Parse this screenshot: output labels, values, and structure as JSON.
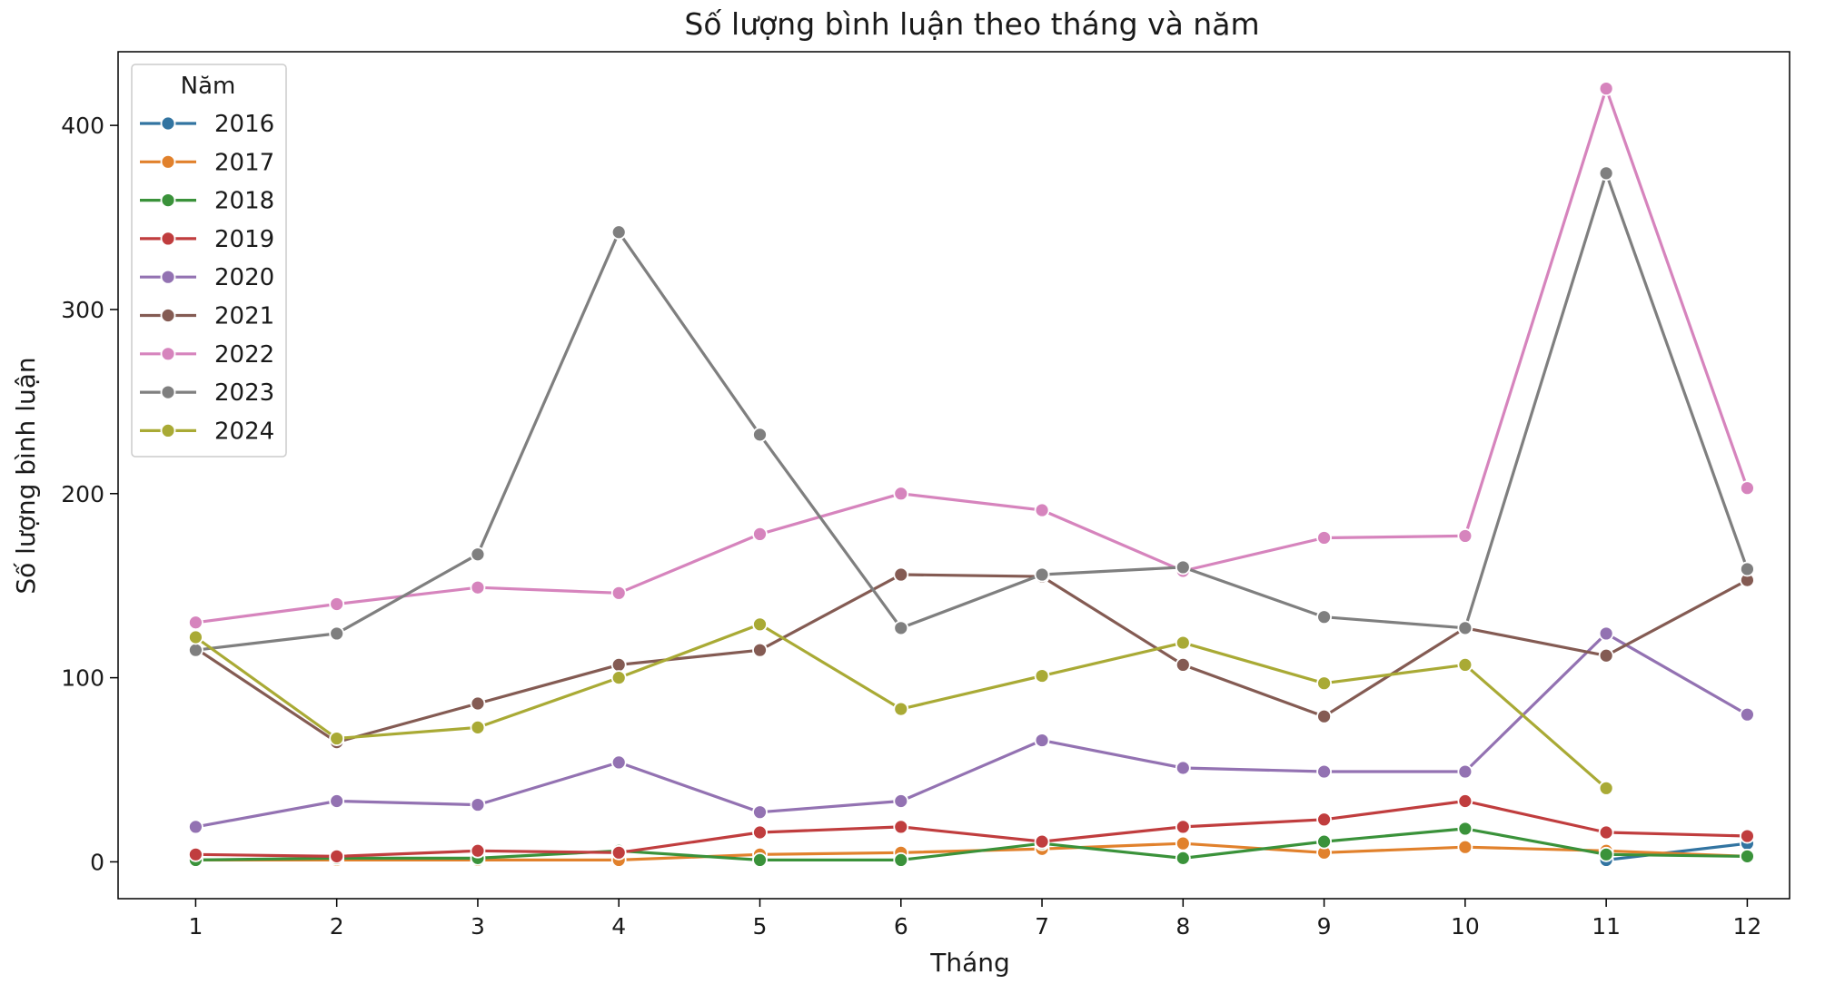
{
  "chart_data": {
    "type": "line",
    "title": "Số lượng bình luận theo tháng và năm",
    "xlabel": "Tháng",
    "ylabel": "Số lượng bình luận",
    "x": [
      1,
      2,
      3,
      4,
      5,
      6,
      7,
      8,
      9,
      10,
      11,
      12
    ],
    "xlim": [
      0.45,
      12.3
    ],
    "ylim": [
      -20,
      440
    ],
    "yticks": [
      0,
      100,
      200,
      300,
      400
    ],
    "grid": false,
    "marker": "circle",
    "legend": {
      "title": "Năm",
      "placement": "top-left"
    },
    "series": [
      {
        "name": "2016",
        "color": "#3274a1",
        "points": [
          [
            11,
            1
          ],
          [
            12,
            10
          ]
        ]
      },
      {
        "name": "2017",
        "color": "#e1812c",
        "points": [
          [
            1,
            1
          ],
          [
            2,
            1
          ],
          [
            3,
            1
          ],
          [
            4,
            1
          ],
          [
            5,
            4
          ],
          [
            6,
            5
          ],
          [
            7,
            7
          ],
          [
            8,
            10
          ],
          [
            9,
            5
          ],
          [
            10,
            8
          ],
          [
            11,
            6
          ],
          [
            12,
            3
          ]
        ]
      },
      {
        "name": "2018",
        "color": "#3a923a",
        "points": [
          [
            1,
            1
          ],
          [
            2,
            2
          ],
          [
            3,
            2
          ],
          [
            4,
            6
          ],
          [
            5,
            1
          ],
          [
            6,
            1
          ],
          [
            7,
            10
          ],
          [
            8,
            2
          ],
          [
            9,
            11
          ],
          [
            10,
            18
          ],
          [
            11,
            4
          ],
          [
            12,
            3
          ]
        ]
      },
      {
        "name": "2019",
        "color": "#c03d3e",
        "points": [
          [
            1,
            4
          ],
          [
            2,
            3
          ],
          [
            3,
            6
          ],
          [
            4,
            5
          ],
          [
            5,
            16
          ],
          [
            6,
            19
          ],
          [
            7,
            11
          ],
          [
            8,
            19
          ],
          [
            9,
            23
          ],
          [
            10,
            33
          ],
          [
            11,
            16
          ],
          [
            12,
            14
          ]
        ]
      },
      {
        "name": "2020",
        "color": "#9372b2",
        "points": [
          [
            1,
            19
          ],
          [
            2,
            33
          ],
          [
            3,
            31
          ],
          [
            4,
            54
          ],
          [
            5,
            27
          ],
          [
            6,
            33
          ],
          [
            7,
            66
          ],
          [
            8,
            51
          ],
          [
            9,
            49
          ],
          [
            10,
            49
          ],
          [
            11,
            124
          ],
          [
            12,
            80
          ]
        ]
      },
      {
        "name": "2021",
        "color": "#845b53",
        "points": [
          [
            1,
            116
          ],
          [
            2,
            65
          ],
          [
            3,
            86
          ],
          [
            4,
            107
          ],
          [
            5,
            115
          ],
          [
            6,
            156
          ],
          [
            7,
            155
          ],
          [
            8,
            107
          ],
          [
            9,
            79
          ],
          [
            10,
            127
          ],
          [
            11,
            112
          ],
          [
            12,
            153
          ]
        ]
      },
      {
        "name": "2022",
        "color": "#d684bd",
        "points": [
          [
            1,
            130
          ],
          [
            2,
            140
          ],
          [
            3,
            149
          ],
          [
            4,
            146
          ],
          [
            5,
            178
          ],
          [
            6,
            200
          ],
          [
            7,
            191
          ],
          [
            8,
            158
          ],
          [
            9,
            176
          ],
          [
            10,
            177
          ],
          [
            11,
            420
          ],
          [
            12,
            203
          ]
        ]
      },
      {
        "name": "2023",
        "color": "#7f7f7f",
        "points": [
          [
            1,
            115
          ],
          [
            2,
            124
          ],
          [
            3,
            167
          ],
          [
            4,
            342
          ],
          [
            5,
            232
          ],
          [
            6,
            127
          ],
          [
            7,
            156
          ],
          [
            8,
            160
          ],
          [
            9,
            133
          ],
          [
            10,
            127
          ],
          [
            11,
            374
          ],
          [
            12,
            159
          ]
        ]
      },
      {
        "name": "2024",
        "color": "#a9aa35",
        "points": [
          [
            1,
            122
          ],
          [
            2,
            67
          ],
          [
            3,
            73
          ],
          [
            4,
            100
          ],
          [
            5,
            129
          ],
          [
            6,
            83
          ],
          [
            7,
            101
          ],
          [
            8,
            119
          ],
          [
            9,
            97
          ],
          [
            10,
            107
          ],
          [
            11,
            40
          ]
        ]
      }
    ]
  }
}
